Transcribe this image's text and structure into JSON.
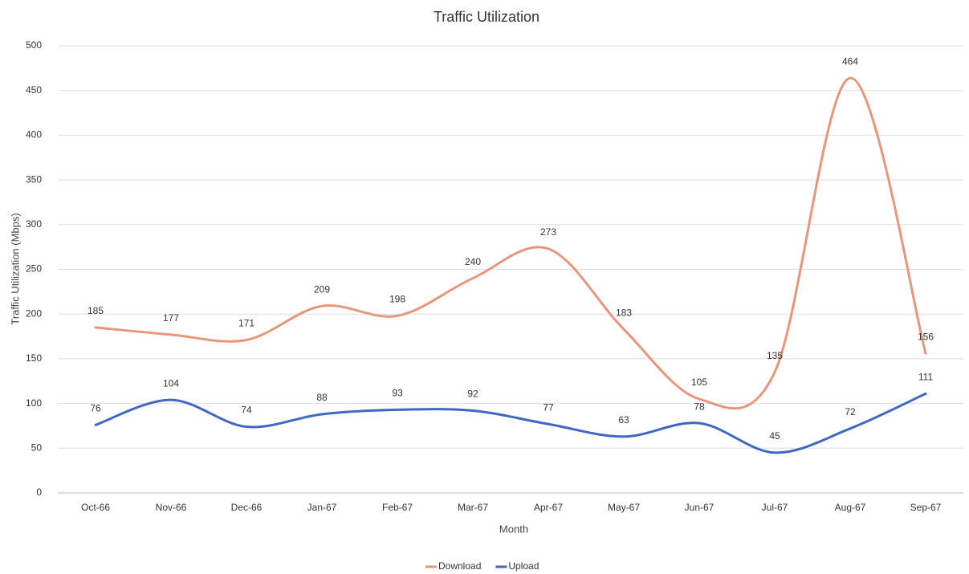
{
  "chart_data": {
    "type": "line",
    "title": "Traffic Utilization",
    "x_label": "Month",
    "y_label": "Traffic Utilization (Mbps)",
    "categories": [
      "Oct-66",
      "Nov-66",
      "Dec-66",
      "Jan-67",
      "Feb-67",
      "Mar-67",
      "Apr-67",
      "May-67",
      "Jun-67",
      "Jul-67",
      "Aug-67",
      "Sep-67"
    ],
    "series": [
      {
        "name": "Download",
        "color": "#e8967a",
        "values": [
          185,
          177,
          171,
          209,
          198,
          240,
          273,
          183,
          105,
          135,
          464,
          156
        ]
      },
      {
        "name": "Upload",
        "color": "#4068c0",
        "values": [
          76,
          104,
          74,
          88,
          93,
          92,
          77,
          63,
          78,
          45,
          72,
          111
        ]
      }
    ],
    "ylim": [
      0,
      500
    ],
    "yticks": [
      0,
      50,
      100,
      150,
      200,
      250,
      300,
      350,
      400,
      450,
      500
    ],
    "grid": true,
    "legend": "bottom",
    "smooth": true
  }
}
